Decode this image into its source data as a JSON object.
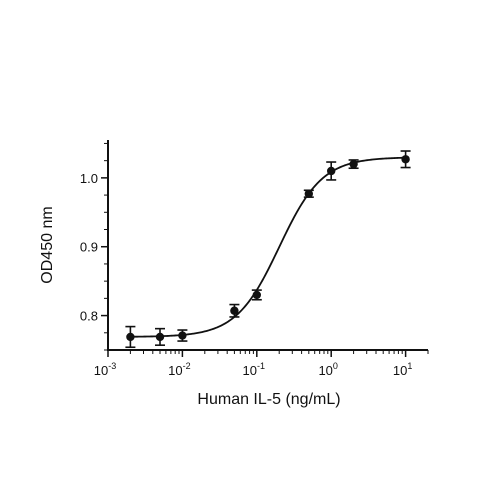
{
  "chart_data": {
    "type": "scatter",
    "title": "",
    "xlabel": "Human IL-5 (ng/mL)",
    "ylabel": "OD450 nm",
    "x_scale": "log",
    "xlim": [
      0.001,
      20
    ],
    "ylim": [
      0.75,
      1.055
    ],
    "x_ticks": [
      {
        "value": 0.001,
        "base": "10",
        "exp": "-3"
      },
      {
        "value": 0.01,
        "base": "10",
        "exp": "-2"
      },
      {
        "value": 0.1,
        "base": "10",
        "exp": "-1"
      },
      {
        "value": 1,
        "base": "10",
        "exp": "0"
      },
      {
        "value": 10,
        "base": "10",
        "exp": "1"
      }
    ],
    "y_ticks": [
      {
        "value": 0.8,
        "label": "0.8"
      },
      {
        "value": 0.9,
        "label": "0.9"
      },
      {
        "value": 1.0,
        "label": "1.0"
      }
    ],
    "grid": false,
    "legend": "none",
    "color": "#111111",
    "points": [
      {
        "x": 0.002,
        "y": 0.769,
        "err": 0.015
      },
      {
        "x": 0.005,
        "y": 0.769,
        "err": 0.012
      },
      {
        "x": 0.01,
        "y": 0.771,
        "err": 0.008
      },
      {
        "x": 0.05,
        "y": 0.807,
        "err": 0.009
      },
      {
        "x": 0.1,
        "y": 0.83,
        "err": 0.007
      },
      {
        "x": 0.5,
        "y": 0.977,
        "err": 0.005
      },
      {
        "x": 1,
        "y": 1.01,
        "err": 0.013
      },
      {
        "x": 2,
        "y": 1.02,
        "err": 0.006
      },
      {
        "x": 10,
        "y": 1.027,
        "err": 0.012
      }
    ],
    "fit_curve": {
      "model": "4PL",
      "bottom": 0.769,
      "top": 1.03,
      "ec50": 0.2,
      "hill": 1.5
    }
  }
}
